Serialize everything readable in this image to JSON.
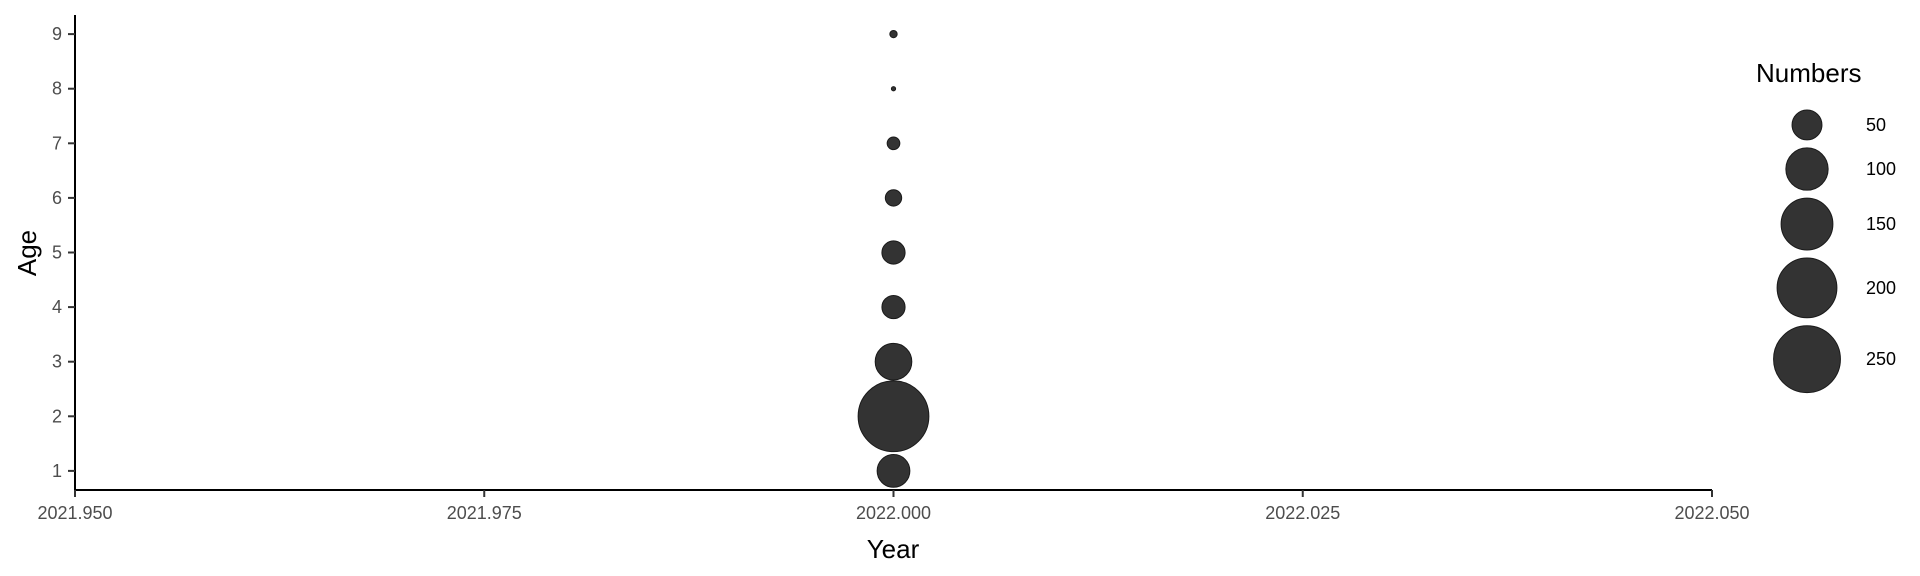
{
  "chart_data": {
    "type": "scatter",
    "title": "",
    "xlabel": "Year",
    "ylabel": "Age",
    "xlim": [
      2021.95,
      2022.05
    ],
    "ylim": [
      0.65,
      9.35
    ],
    "x_ticks": [
      2021.95,
      2021.975,
      2022.0,
      2022.025,
      2022.05
    ],
    "x_tick_labels": [
      "2021.950",
      "2021.975",
      "2022.000",
      "2022.025",
      "2022.050"
    ],
    "y_ticks": [
      1,
      2,
      3,
      4,
      5,
      6,
      7,
      8,
      9
    ],
    "y_tick_labels": [
      "1",
      "2",
      "3",
      "4",
      "5",
      "6",
      "7",
      "8",
      "9"
    ],
    "grid": false,
    "point_color": "#333333",
    "size_variable": "Numbers",
    "size_range": [
      0,
      290
    ],
    "points": [
      {
        "x": 2022.0,
        "y": 1,
        "size": 60
      },
      {
        "x": 2022.0,
        "y": 2,
        "size": 280
      },
      {
        "x": 2022.0,
        "y": 3,
        "size": 75
      },
      {
        "x": 2022.0,
        "y": 4,
        "size": 30
      },
      {
        "x": 2022.0,
        "y": 5,
        "size": 30
      },
      {
        "x": 2022.0,
        "y": 6,
        "size": 15
      },
      {
        "x": 2022.0,
        "y": 7,
        "size": 9
      },
      {
        "x": 2022.0,
        "y": 8,
        "size": 1
      },
      {
        "x": 2022.0,
        "y": 9,
        "size": 3
      }
    ],
    "legend": {
      "title": "Numbers",
      "placement": "right",
      "entries": [
        {
          "label": "50",
          "value": 50
        },
        {
          "label": "100",
          "value": 100
        },
        {
          "label": "150",
          "value": 150
        },
        {
          "label": "200",
          "value": 200
        },
        {
          "label": "250",
          "value": 250
        }
      ]
    }
  }
}
